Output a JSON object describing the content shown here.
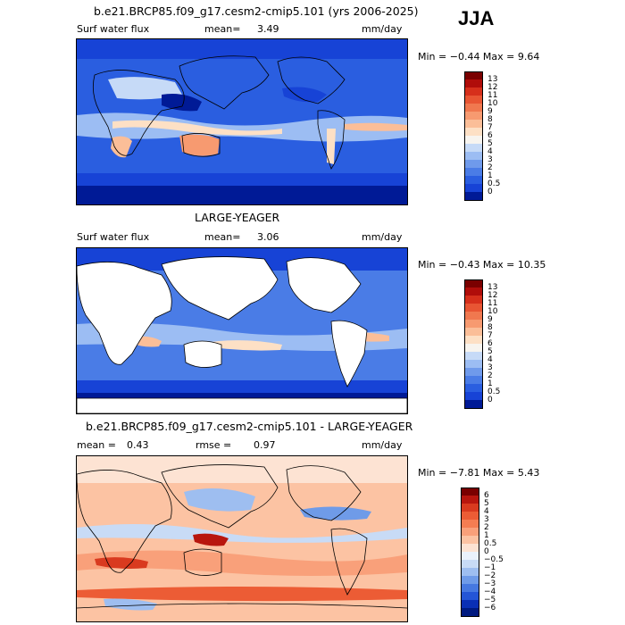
{
  "season": "JJA",
  "panels": [
    {
      "id": "model",
      "title": "b.e21.BRCP85.f09_g17.cesm2-cmip5.101 (yrs 2006-2025)",
      "variable": "Surf water flux",
      "mean_label": "mean=",
      "mean_value": "3.49",
      "units": "mm/day",
      "minmax": "Min =  −0.44  Max =   9.64",
      "colorbar": {
        "labels": [
          "13",
          "12",
          "11",
          "10",
          "9",
          "8",
          "7",
          "6",
          "5",
          "4",
          "3",
          "2",
          "1",
          "0.5",
          "0"
        ],
        "colors": [
          "#7a0000",
          "#b00d0a",
          "#d62f1b",
          "#e85533",
          "#f0784f",
          "#f79a70",
          "#fbbe98",
          "#fde0c5",
          "#f7f4ef",
          "#c6daf7",
          "#9cbdf3",
          "#6f9aeb",
          "#4a7ce6",
          "#2a5ee0",
          "#1743d6",
          "#001a96"
        ]
      }
    },
    {
      "id": "obs",
      "title": "LARGE-YEAGER",
      "variable": "Surf water flux",
      "mean_label": "mean=",
      "mean_value": "3.06",
      "units": "mm/day",
      "minmax": "Min =  −0.43  Max =  10.35",
      "colorbar": {
        "labels": [
          "13",
          "12",
          "11",
          "10",
          "9",
          "8",
          "7",
          "6",
          "5",
          "4",
          "3",
          "2",
          "1",
          "0.5",
          "0"
        ],
        "colors": [
          "#7a0000",
          "#b00d0a",
          "#d62f1b",
          "#e85533",
          "#f0784f",
          "#f79a70",
          "#fbbe98",
          "#fde0c5",
          "#f7f4ef",
          "#c6daf7",
          "#9cbdf3",
          "#6f9aeb",
          "#4a7ce6",
          "#2a5ee0",
          "#1743d6",
          "#001a96"
        ]
      }
    },
    {
      "id": "diff",
      "title": "b.e21.BRCP85.f09_g17.cesm2-cmip5.101 - LARGE-YEAGER",
      "mean_label": "mean =",
      "mean_value": "0.43",
      "rmse_label": "rmse =",
      "rmse_value": "0.97",
      "units": "mm/day",
      "minmax": "Min =  −7.81  Max =   5.43",
      "colorbar": {
        "labels": [
          "6",
          "5",
          "4",
          "3",
          "2",
          "1",
          "0.5",
          "0",
          "−0.5",
          "−1",
          "−2",
          "−3",
          "−4",
          "−5",
          "−6"
        ],
        "colors": [
          "#7a0000",
          "#b8160e",
          "#d93a1f",
          "#ec5c35",
          "#f47d52",
          "#f9a07a",
          "#fcc3a3",
          "#fde3d3",
          "#eaf2fc",
          "#c8dbf6",
          "#9ebef0",
          "#6f9be8",
          "#4678e0",
          "#2455d6",
          "#0a2fb5",
          "#001a80"
        ]
      }
    }
  ]
}
